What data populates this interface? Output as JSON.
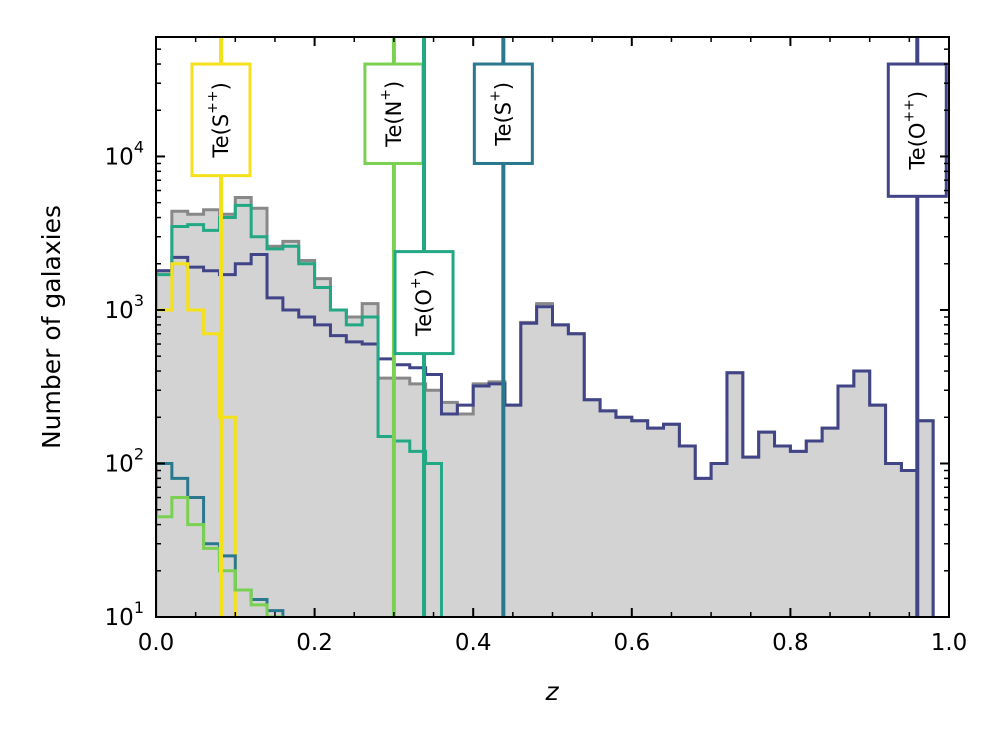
{
  "chart_data": {
    "type": "histogram",
    "xlabel": "z",
    "ylabel": "Number of galaxies",
    "xlim": [
      0.0,
      1.0
    ],
    "ylim": [
      10,
      60000
    ],
    "yscale": "log",
    "x_ticks": [
      "0.0",
      "0.2",
      "0.4",
      "0.6",
      "0.8",
      "1.0"
    ],
    "y_ticks": [
      {
        "value": 10,
        "base": "10",
        "exp": "1"
      },
      {
        "value": 100,
        "base": "10",
        "exp": "2"
      },
      {
        "value": 1000,
        "base": "10",
        "exp": "3"
      },
      {
        "value": 10000,
        "base": "10",
        "exp": "4"
      }
    ],
    "bin_width": 0.02,
    "grid": false,
    "colors": {
      "total_fill": "#d3d3d3",
      "total_line": "#888888",
      "Te(S++)": "#f5e11a",
      "Te(N+)": "#7ad151",
      "Te(O+)": "#22a884",
      "Te(S+)": "#2a788e",
      "Te(O++)": "#414487"
    },
    "series": [
      {
        "key": "total",
        "start": 0.0,
        "values": [
          1800,
          4400,
          4200,
          4500,
          4200,
          5400,
          4600,
          2600,
          2800,
          2100,
          1600,
          1000,
          900,
          1100,
          360,
          360,
          330,
          300,
          250,
          210,
          330,
          340,
          240,
          830,
          1100,
          800,
          700,
          260,
          220,
          200,
          190,
          170,
          180,
          130,
          80,
          100,
          390,
          110,
          160,
          130,
          120,
          140,
          170,
          320,
          400,
          240,
          100,
          90,
          190
        ]
      },
      {
        "key": "Te(O++)",
        "start": 0.0,
        "values": [
          1800,
          2200,
          1900,
          1800,
          1700,
          2000,
          2300,
          1200,
          1000,
          900,
          800,
          680,
          620,
          600,
          480,
          440,
          420,
          380,
          210,
          240,
          320,
          330,
          240,
          820,
          1050,
          800,
          700,
          260,
          220,
          200,
          190,
          170,
          180,
          130,
          80,
          100,
          390,
          110,
          160,
          130,
          120,
          140,
          170,
          320,
          400,
          240,
          100,
          90,
          190
        ]
      },
      {
        "key": "Te(O+)",
        "start": 0.0,
        "values": [
          1700,
          3500,
          3600,
          3300,
          4000,
          4800,
          3000,
          2500,
          2600,
          2000,
          1400,
          1000,
          800,
          900,
          150,
          140,
          120,
          100
        ]
      },
      {
        "key": "Te(S++)",
        "start": 0.0,
        "values": [
          1000,
          2000,
          1000,
          700,
          200
        ]
      },
      {
        "key": "Te(S+)",
        "start": 0.0,
        "values": [
          100,
          80,
          60,
          30,
          25,
          15,
          13,
          11
        ]
      },
      {
        "key": "Te(N+)",
        "start": 0.0,
        "values": [
          45,
          60,
          40,
          28,
          20,
          15,
          12,
          10
        ]
      }
    ],
    "markers": [
      {
        "label": "Te(S",
        "sup": "++",
        "close": ")",
        "x": 0.082,
        "y_top": 40000,
        "y_bottom": 7500
      },
      {
        "label": "Te(N",
        "sup": "+",
        "close": ")",
        "x": 0.3,
        "y_top": 40000,
        "y_bottom": 9000
      },
      {
        "label": "Te(O",
        "sup": "+",
        "close": ")",
        "x": 0.338,
        "y_top": 2400,
        "y_bottom": 520
      },
      {
        "label": "Te(S",
        "sup": "+",
        "close": ")",
        "x": 0.438,
        "y_top": 40000,
        "y_bottom": 9000
      },
      {
        "label": "Te(O",
        "sup": "++",
        "close": ")",
        "x": 0.96,
        "y_top": 40000,
        "y_bottom": 5500
      }
    ]
  }
}
